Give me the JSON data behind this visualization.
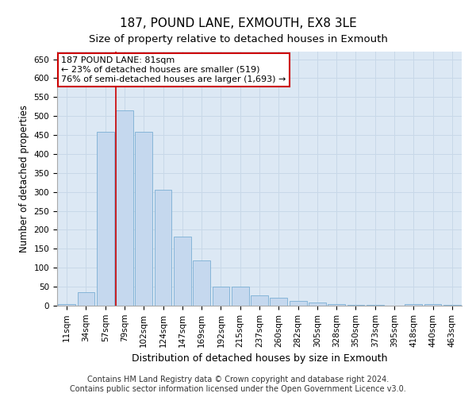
{
  "title": "187, POUND LANE, EXMOUTH, EX8 3LE",
  "subtitle": "Size of property relative to detached houses in Exmouth",
  "xlabel": "Distribution of detached houses by size in Exmouth",
  "ylabel": "Number of detached properties",
  "categories": [
    "11sqm",
    "34sqm",
    "57sqm",
    "79sqm",
    "102sqm",
    "124sqm",
    "147sqm",
    "169sqm",
    "192sqm",
    "215sqm",
    "237sqm",
    "260sqm",
    "282sqm",
    "305sqm",
    "328sqm",
    "350sqm",
    "373sqm",
    "395sqm",
    "418sqm",
    "440sqm",
    "463sqm"
  ],
  "values": [
    5,
    35,
    458,
    515,
    458,
    305,
    182,
    120,
    50,
    50,
    27,
    20,
    13,
    8,
    5,
    3,
    3,
    1,
    5,
    5,
    3
  ],
  "bar_color": "#c5d8ee",
  "bar_edge_color": "#7aafd4",
  "vline_x_index": 3,
  "vline_color": "#cc0000",
  "annotation_text": "187 POUND LANE: 81sqm\n← 23% of detached houses are smaller (519)\n76% of semi-detached houses are larger (1,693) →",
  "annotation_box_color": "#ffffff",
  "annotation_box_edge_color": "#cc0000",
  "ylim": [
    0,
    670
  ],
  "yticks": [
    0,
    50,
    100,
    150,
    200,
    250,
    300,
    350,
    400,
    450,
    500,
    550,
    600,
    650
  ],
  "grid_color": "#c8d8e8",
  "background_color": "#dce8f4",
  "footer_line1": "Contains HM Land Registry data © Crown copyright and database right 2024.",
  "footer_line2": "Contains public sector information licensed under the Open Government Licence v3.0.",
  "title_fontsize": 11,
  "subtitle_fontsize": 9.5,
  "xlabel_fontsize": 9,
  "ylabel_fontsize": 8.5,
  "annotation_fontsize": 8,
  "footer_fontsize": 7,
  "tick_fontsize": 7.5
}
